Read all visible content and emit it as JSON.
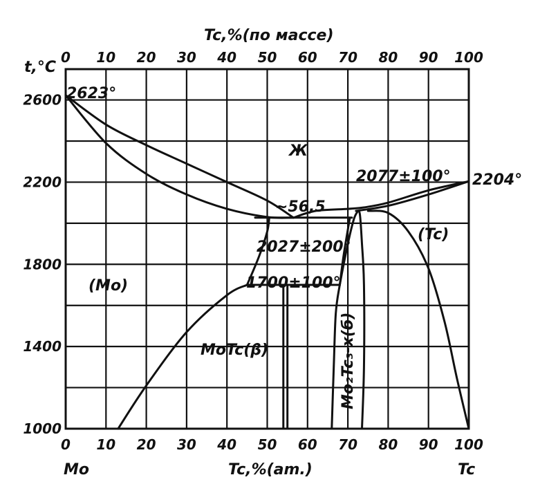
{
  "chart_data": {
    "type": "phase-diagram",
    "title": "",
    "top_axis": {
      "label": "Tc,%(по массе)",
      "ticks": [
        "0",
        "10",
        "20",
        "30",
        "40",
        "50",
        "60",
        "70",
        "80",
        "90",
        "100"
      ]
    },
    "bottom_axis": {
      "label": "Tc,%(am.)",
      "ticks": [
        "0",
        "10",
        "20",
        "30",
        "40",
        "50",
        "60",
        "70",
        "80",
        "90",
        "100"
      ],
      "left_end_label": "Mo",
      "right_end_label": "Tc"
    },
    "y_axis": {
      "label": "t,°C",
      "ticks": [
        "2600",
        "2200",
        "1800",
        "1400",
        "1000"
      ],
      "ylim": [
        1000,
        2750
      ]
    },
    "xlim": [
      0,
      100
    ],
    "grid": true,
    "annotations": {
      "mo_melting": "2623°",
      "liquid": "Ж",
      "minimum": "~56,5",
      "peritectic_high": "2077±100°",
      "tc_melting": "2204°",
      "eutectic": "2027±200°",
      "tc_phase": "(Tc)",
      "mo_phase": "(Mo)",
      "ordering": "1700±100°",
      "motc_phase": "MoTc(β)",
      "mo2tc3_phase": "Mo₂Tc₃-x(б)"
    },
    "curves": [
      {
        "name": "liquidus-left",
        "points": [
          [
            0,
            2623
          ],
          [
            10,
            2480
          ],
          [
            20,
            2380
          ],
          [
            30,
            2290
          ],
          [
            40,
            2200
          ],
          [
            50,
            2110
          ],
          [
            56.5,
            2027
          ]
        ]
      },
      {
        "name": "solidus-left",
        "points": [
          [
            0,
            2623
          ],
          [
            10,
            2390
          ],
          [
            20,
            2240
          ],
          [
            30,
            2140
          ],
          [
            40,
            2070
          ],
          [
            50,
            2030
          ],
          [
            56.5,
            2027
          ]
        ]
      },
      {
        "name": "liquidus-right",
        "points": [
          [
            56.5,
            2027
          ],
          [
            62,
            2060
          ],
          [
            70,
            2070
          ],
          [
            74,
            2077
          ],
          [
            80,
            2100
          ],
          [
            90,
            2160
          ],
          [
            100,
            2204
          ]
        ]
      },
      {
        "name": "solidus-right",
        "points": [
          [
            72,
            2060
          ],
          [
            80,
            2085
          ],
          [
            90,
            2140
          ],
          [
            100,
            2204
          ]
        ]
      },
      {
        "name": "eutectic-line",
        "points": [
          [
            47,
            2027
          ],
          [
            71,
            2027
          ]
        ]
      },
      {
        "name": "mo-solvus",
        "points": [
          [
            13,
            1000
          ],
          [
            20,
            1210
          ],
          [
            30,
            1470
          ],
          [
            40,
            1650
          ],
          [
            45,
            1700
          ]
        ]
      },
      {
        "name": "mo-boundary-upper",
        "points": [
          [
            45,
            1700
          ],
          [
            48,
            1840
          ],
          [
            50,
            1960
          ],
          [
            50.5,
            2027
          ]
        ]
      },
      {
        "name": "ordering-line",
        "points": [
          [
            45,
            1700
          ],
          [
            68,
            1700
          ]
        ]
      },
      {
        "name": "motc-left",
        "points": [
          [
            54,
            1000
          ],
          [
            54,
            1700
          ]
        ]
      },
      {
        "name": "motc-right",
        "points": [
          [
            55,
            1000
          ],
          [
            55,
            1700
          ]
        ]
      },
      {
        "name": "beta-boundary",
        "points": [
          [
            68,
            1700
          ],
          [
            69,
            1850
          ],
          [
            70.5,
            2027
          ]
        ]
      },
      {
        "name": "sigma-left",
        "points": [
          [
            66,
            1000
          ],
          [
            66.5,
            1300
          ],
          [
            67,
            1560
          ],
          [
            68,
            1700
          ],
          [
            70,
            1900
          ],
          [
            71.5,
            2020
          ],
          [
            72.5,
            2060
          ]
        ]
      },
      {
        "name": "sigma-right",
        "points": [
          [
            72.5,
            2060
          ],
          [
            73,
            2040
          ],
          [
            73.5,
            1900
          ],
          [
            74,
            1700
          ],
          [
            74,
            1300
          ],
          [
            73.5,
            1000
          ]
        ]
      },
      {
        "name": "tc-solvus",
        "points": [
          [
            75,
            2060
          ],
          [
            80,
            2050
          ],
          [
            85,
            1960
          ],
          [
            90,
            1780
          ],
          [
            94,
            1520
          ],
          [
            97,
            1250
          ],
          [
            100,
            1000
          ]
        ]
      }
    ]
  }
}
